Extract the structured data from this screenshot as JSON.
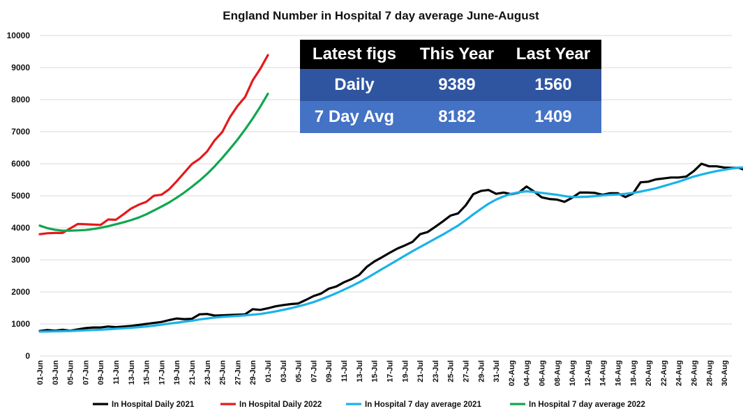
{
  "chart_data": {
    "type": "line",
    "title": "England Number in Hospital 7 day average June-August",
    "xlabel": "",
    "ylabel": "",
    "ylim": [
      0,
      10000
    ],
    "yticks": [
      0,
      1000,
      2000,
      3000,
      4000,
      5000,
      6000,
      7000,
      8000,
      9000,
      10000
    ],
    "grid": true,
    "legend_position": "bottom",
    "x_start": "01-Jun",
    "x_tick_labels": [
      "01-Jun",
      "03-Jun",
      "05-Jun",
      "07-Jun",
      "09-Jun",
      "11-Jun",
      "13-Jun",
      "15-Jun",
      "17-Jun",
      "19-Jun",
      "21-Jun",
      "23-Jun",
      "25-Jun",
      "27-Jun",
      "29-Jun",
      "01-Jul",
      "03-Jul",
      "05-Jul",
      "07-Jul",
      "09-Jul",
      "11-Jul",
      "13-Jul",
      "15-Jul",
      "17-Jul",
      "19-Jul",
      "21-Jul",
      "23-Jul",
      "25-Jul",
      "27-Jul",
      "29-Jul",
      "31-Jul",
      "02-Aug",
      "04-Aug",
      "06-Aug",
      "08-Aug",
      "10-Aug",
      "12-Aug",
      "14-Aug",
      "16-Aug",
      "18-Aug",
      "20-Aug",
      "22-Aug",
      "24-Aug",
      "26-Aug",
      "28-Aug",
      "30-Aug"
    ],
    "series": [
      {
        "name": "In Hospital Daily 2021",
        "color": "#000000",
        "values": [
          780,
          810,
          790,
          820,
          790,
          830,
          870,
          890,
          890,
          920,
          900,
          920,
          940,
          970,
          1000,
          1030,
          1060,
          1120,
          1170,
          1150,
          1160,
          1300,
          1310,
          1260,
          1270,
          1280,
          1290,
          1300,
          1460,
          1440,
          1490,
          1550,
          1590,
          1620,
          1640,
          1750,
          1870,
          1950,
          2100,
          2170,
          2300,
          2400,
          2530,
          2780,
          2950,
          3080,
          3220,
          3350,
          3450,
          3560,
          3800,
          3870,
          4030,
          4200,
          4380,
          4450,
          4700,
          5050,
          5150,
          5180,
          5060,
          5100,
          5050,
          5100,
          5290,
          5130,
          4950,
          4900,
          4880,
          4810,
          4940,
          5100,
          5100,
          5090,
          5030,
          5080,
          5080,
          4960,
          5070,
          5420,
          5440,
          5510,
          5540,
          5570,
          5570,
          5600,
          5770,
          6000,
          5920,
          5920,
          5880,
          5870,
          5870,
          5770,
          5850,
          6000,
          6280
        ]
      },
      {
        "name": "In Hospital Daily 2022",
        "color": "#e41a1c",
        "values": [
          3800,
          3830,
          3840,
          3840,
          3980,
          4120,
          4110,
          4100,
          4090,
          4260,
          4250,
          4420,
          4600,
          4720,
          4810,
          5000,
          5030,
          5200,
          5450,
          5720,
          5990,
          6150,
          6380,
          6730,
          6990,
          7450,
          7800,
          8080,
          8600,
          8960,
          9389
        ]
      },
      {
        "name": "In Hospital 7 day average 2021",
        "color": "#1ab2e8",
        "values": [
          760,
          765,
          770,
          775,
          780,
          790,
          800,
          810,
          820,
          835,
          850,
          865,
          880,
          900,
          920,
          945,
          975,
          1010,
          1040,
          1070,
          1100,
          1140,
          1170,
          1200,
          1220,
          1235,
          1250,
          1270,
          1290,
          1310,
          1350,
          1390,
          1440,
          1490,
          1550,
          1610,
          1680,
          1770,
          1860,
          1960,
          2070,
          2180,
          2300,
          2430,
          2570,
          2710,
          2850,
          2990,
          3130,
          3270,
          3400,
          3530,
          3660,
          3790,
          3930,
          4070,
          4240,
          4420,
          4590,
          4750,
          4880,
          4980,
          5060,
          5110,
          5140,
          5120,
          5090,
          5060,
          5030,
          4990,
          4960,
          4960,
          4970,
          4990,
          5010,
          5030,
          5040,
          5060,
          5090,
          5130,
          5180,
          5230,
          5300,
          5370,
          5440,
          5520,
          5600,
          5660,
          5720,
          5770,
          5810,
          5850,
          5880,
          5890,
          5900,
          5920,
          5940
        ]
      },
      {
        "name": "In Hospital 7 day average 2022",
        "color": "#10a64f",
        "values": [
          4070,
          3990,
          3940,
          3910,
          3910,
          3920,
          3930,
          3960,
          4000,
          4050,
          4110,
          4170,
          4240,
          4320,
          4420,
          4540,
          4660,
          4790,
          4940,
          5100,
          5280,
          5470,
          5680,
          5920,
          6180,
          6460,
          6750,
          7070,
          7410,
          7780,
          8182
        ]
      }
    ]
  },
  "stats_table": {
    "headers": [
      "Latest figs",
      "This Year",
      "Last Year"
    ],
    "rows": [
      {
        "label": "Daily",
        "this_year": "9389",
        "last_year": "1560"
      },
      {
        "label": "7 Day Avg",
        "this_year": "8182",
        "last_year": "1409"
      }
    ]
  }
}
